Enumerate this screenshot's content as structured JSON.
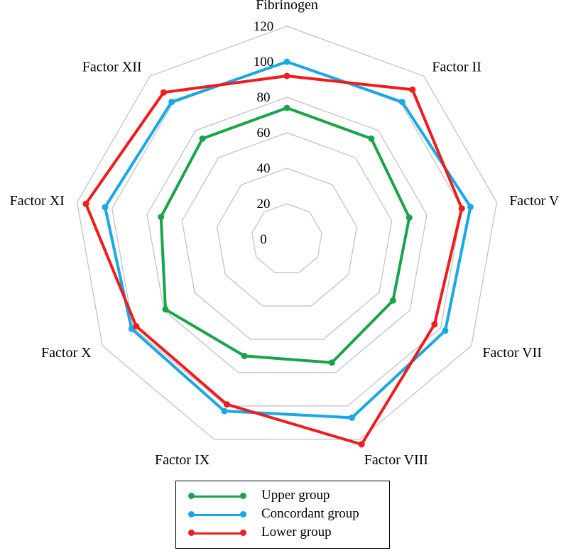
{
  "chart_data": {
    "type": "radar",
    "axes": [
      "Fibrinogen",
      "Factor II",
      "Factor V",
      "Factor VII",
      "Factor VIII",
      "Factor IX",
      "Factor X",
      "Factor XI",
      "Factor XII"
    ],
    "r_ticks": [
      0,
      20,
      40,
      60,
      80,
      100,
      120
    ],
    "r_range": [
      0,
      120
    ],
    "grid": true,
    "legend_position": "bottom-center",
    "series": [
      {
        "name": "Upper group",
        "color": "#1aa34a",
        "values": [
          74,
          74,
          70,
          69,
          74,
          70,
          79,
          72,
          74
        ]
      },
      {
        "name": "Concordant group",
        "color": "#19a8e6",
        "values": [
          100,
          101,
          105,
          103,
          107,
          103,
          101,
          104,
          101
        ]
      },
      {
        "name": "Lower group",
        "color": "#ee1c1c",
        "values": [
          92,
          110,
          100,
          96,
          123,
          99,
          98,
          115,
          108
        ]
      }
    ]
  }
}
